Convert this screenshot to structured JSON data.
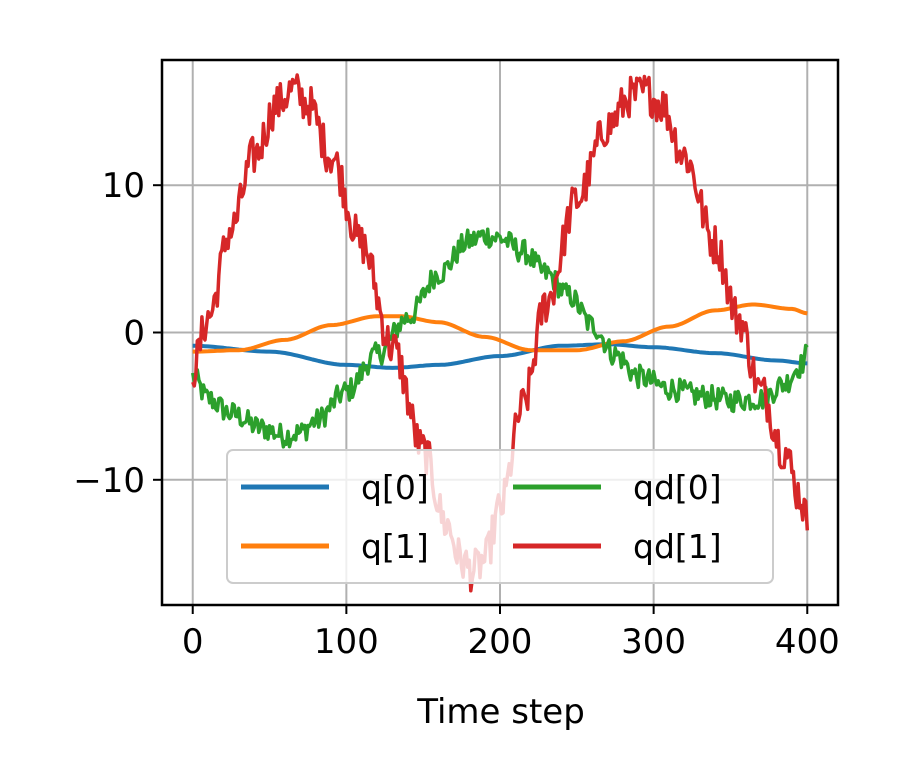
{
  "chart_data": {
    "type": "line",
    "title": "",
    "xlabel": "Time step",
    "ylabel": "",
    "xlim": [
      -20,
      420
    ],
    "ylim": [
      -18.5,
      18.5
    ],
    "xticks": [
      0,
      100,
      200,
      300,
      400
    ],
    "xtick_labels": [
      "0",
      "100",
      "200",
      "300",
      "400"
    ],
    "yticks": [
      -10,
      0,
      10
    ],
    "ytick_labels": [
      "−10",
      "0",
      "10"
    ],
    "grid": true,
    "legend": {
      "placement": "lower-right",
      "columns": 2
    },
    "series": [
      {
        "name": "q[0]",
        "color": "#1f77b4",
        "noise": 0,
        "x": [
          0,
          50,
          100,
          130,
          160,
          200,
          240,
          270,
          300,
          340,
          380,
          400
        ],
        "y": [
          -0.9,
          -1.3,
          -2.2,
          -2.4,
          -2.2,
          -1.6,
          -0.9,
          -0.8,
          -1.0,
          -1.4,
          -1.9,
          -2.1
        ]
      },
      {
        "name": "q[1]",
        "color": "#ff7f0e",
        "noise": 0,
        "x": [
          0,
          30,
          60,
          90,
          120,
          135,
          160,
          190,
          220,
          250,
          280,
          310,
          340,
          365,
          390,
          400
        ],
        "y": [
          -1.3,
          -1.2,
          -0.5,
          0.5,
          1.1,
          1.1,
          0.7,
          -0.3,
          -1.2,
          -1.2,
          -0.6,
          0.4,
          1.5,
          1.9,
          1.6,
          1.3
        ]
      },
      {
        "name": "qd[0]",
        "color": "#2ca02c",
        "noise": 0.8,
        "x": [
          0,
          10,
          25,
          45,
          60,
          70,
          80,
          100,
          120,
          140,
          160,
          180,
          190,
          200,
          215,
          230,
          245,
          260,
          275,
          290,
          310,
          330,
          350,
          370,
          385,
          395,
          400
        ],
        "y": [
          -3.0,
          -4.5,
          -5.5,
          -6.5,
          -7.0,
          -6.8,
          -6.0,
          -4.0,
          -1.5,
          1.0,
          4.0,
          6.2,
          6.6,
          6.4,
          5.5,
          4.0,
          2.5,
          0.5,
          -1.5,
          -3.0,
          -3.8,
          -4.3,
          -4.6,
          -4.5,
          -3.5,
          -2.3,
          -1.5
        ]
      },
      {
        "name": "qd[1]",
        "color": "#d62728",
        "noise": 1.4,
        "x": [
          0,
          10,
          25,
          40,
          55,
          65,
          75,
          90,
          110,
          130,
          150,
          165,
          175,
          182,
          190,
          200,
          215,
          230,
          250,
          270,
          285,
          295,
          305,
          320,
          340,
          355,
          370,
          385,
          395,
          400
        ],
        "y": [
          -2.5,
          1.0,
          7.0,
          12.0,
          15.5,
          16.5,
          15.5,
          12.0,
          6.0,
          -1.0,
          -8.0,
          -13.0,
          -15.5,
          -16.2,
          -15.5,
          -12.0,
          -5.0,
          2.0,
          9.0,
          14.0,
          16.0,
          16.3,
          15.5,
          12.0,
          6.0,
          1.0,
          -4.0,
          -8.0,
          -11.0,
          -12.8
        ]
      }
    ]
  }
}
